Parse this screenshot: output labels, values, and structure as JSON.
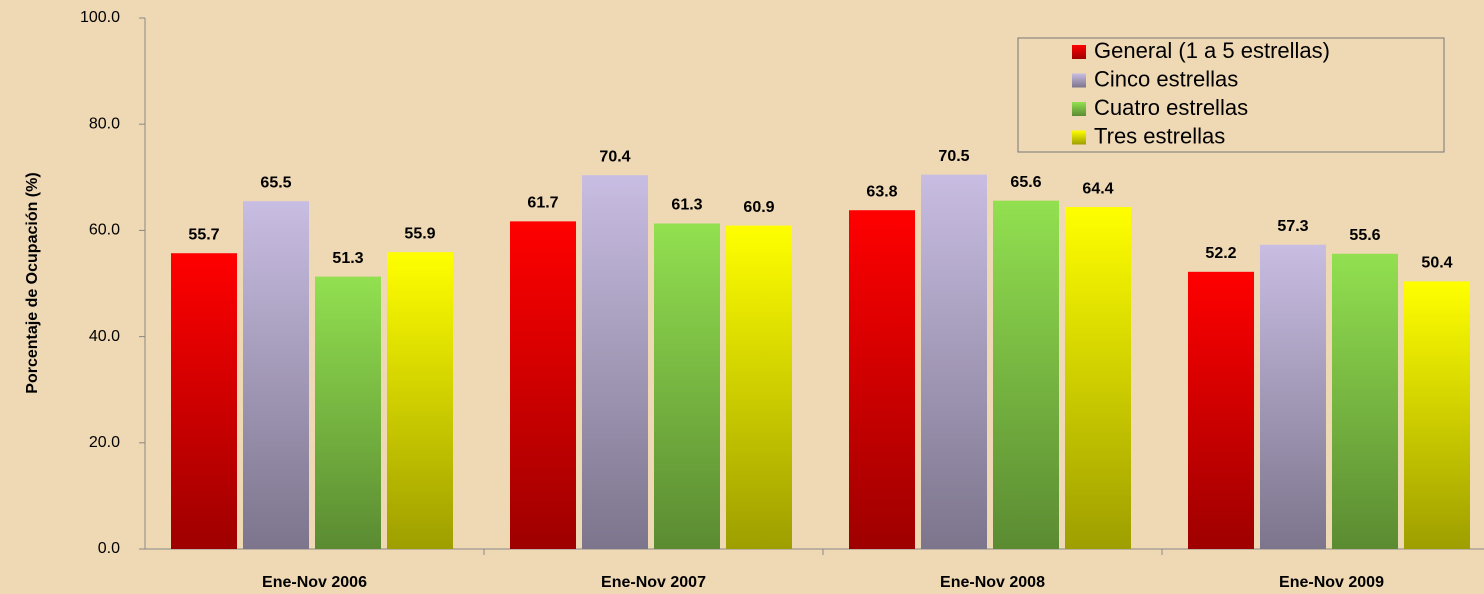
{
  "chart_data": {
    "type": "bar",
    "y_axis_label": "Porcentaje de Ocupación (%)",
    "categories": [
      "Ene-Nov 2006",
      "Ene-Nov 2007",
      "Ene-Nov 2008",
      "Ene-Nov 2009"
    ],
    "series": [
      {
        "name": "General (1 a 5 estrellas)",
        "color": "#ff0000",
        "values": [
          55.7,
          61.7,
          63.8,
          52.2
        ]
      },
      {
        "name": "Cinco estrellas",
        "color": "#c8bde2",
        "values": [
          65.5,
          70.4,
          70.5,
          57.3
        ]
      },
      {
        "name": "Cuatro estrellas",
        "color": "#92e050",
        "values": [
          51.3,
          61.3,
          65.6,
          55.6
        ]
      },
      {
        "name": "Tres estrellas",
        "color": "#ffff00",
        "values": [
          55.9,
          60.9,
          64.4,
          50.4
        ]
      }
    ],
    "ylim": [
      0,
      100
    ],
    "yticks": [
      {
        "value": 0,
        "label": "0.0"
      },
      {
        "value": 20,
        "label": "20.0"
      },
      {
        "value": 40,
        "label": "40.0"
      },
      {
        "value": 60,
        "label": "60.0"
      },
      {
        "value": 80,
        "label": "80.0"
      },
      {
        "value": 100,
        "label": "100.0"
      }
    ],
    "legend": "top-right"
  }
}
